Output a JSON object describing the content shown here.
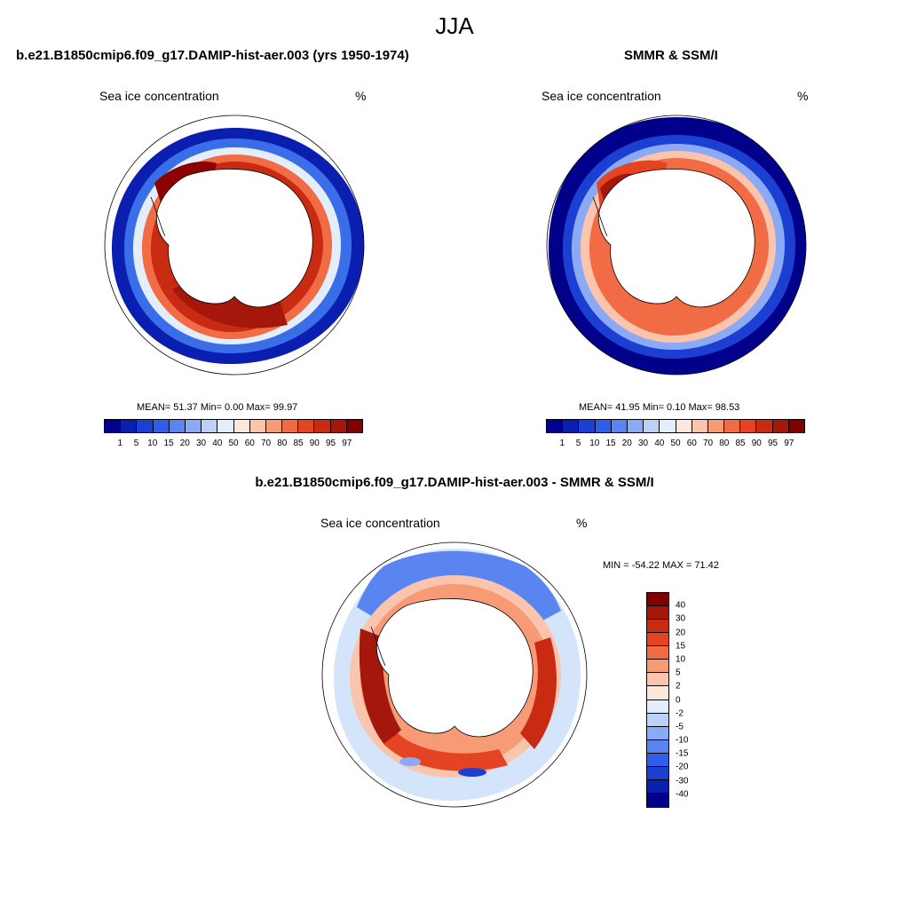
{
  "main_title": "JJA",
  "panel_a": {
    "title": "b.e21.B1850cmip6.f09_g17.DAMIP-hist-aer.003 (yrs 1950-1974)",
    "left_label": "Sea ice concentration",
    "right_label": "%",
    "stats": "MEAN=  51.37  Min=    0.00  Max=  99.97"
  },
  "panel_b": {
    "title": "SMMR & SSM/I",
    "left_label": "Sea ice concentration",
    "right_label": "%",
    "stats": "MEAN=  41.95  Min=    0.10  Max=  98.53"
  },
  "panel_c": {
    "title": "b.e21.B1850cmip6.f09_g17.DAMIP-hist-aer.003 - SMMR & SSM/I",
    "left_label": "Sea ice concentration",
    "right_label": "%",
    "stats": "MIN = -54.22 MAX =  71.42"
  },
  "conc_colorbar": {
    "colors": [
      "#00008b",
      "#0a1fb0",
      "#1b3fd0",
      "#2f5fe8",
      "#5a85f0",
      "#8aaaf5",
      "#bcd0f8",
      "#e4eefb",
      "#fde6dc",
      "#fbc5ad",
      "#f79a76",
      "#f16b45",
      "#e44422",
      "#c82a12",
      "#a4170a",
      "#800000"
    ],
    "labels": [
      "1",
      "5",
      "10",
      "15",
      "20",
      "30",
      "40",
      "50",
      "60",
      "70",
      "80",
      "85",
      "90",
      "95",
      "97"
    ]
  },
  "diff_colorbar": {
    "colors": [
      "#800000",
      "#a4170a",
      "#c82a12",
      "#e44422",
      "#f16b45",
      "#f79a76",
      "#fbc5ad",
      "#fde6dc",
      "#e4eefb",
      "#bcd0f8",
      "#8aaaf5",
      "#5a85f0",
      "#2f5fe8",
      "#1b3fd0",
      "#0a1fb0",
      "#00008b"
    ],
    "labels": [
      "40",
      "30",
      "20",
      "15",
      "10",
      "5",
      "2",
      "0",
      "-2",
      "-5",
      "-10",
      "-15",
      "-20",
      "-30",
      "-40"
    ]
  },
  "colors": {
    "land": "#ffffff",
    "ocean_outer_a": "#00008b",
    "ice_core_a": "#8b0000",
    "ocean_outer_b": "#00008b",
    "ice_core_b": "#d43a16",
    "diff_positive": "#d9421c",
    "diff_negative": "#2f5fe8"
  }
}
